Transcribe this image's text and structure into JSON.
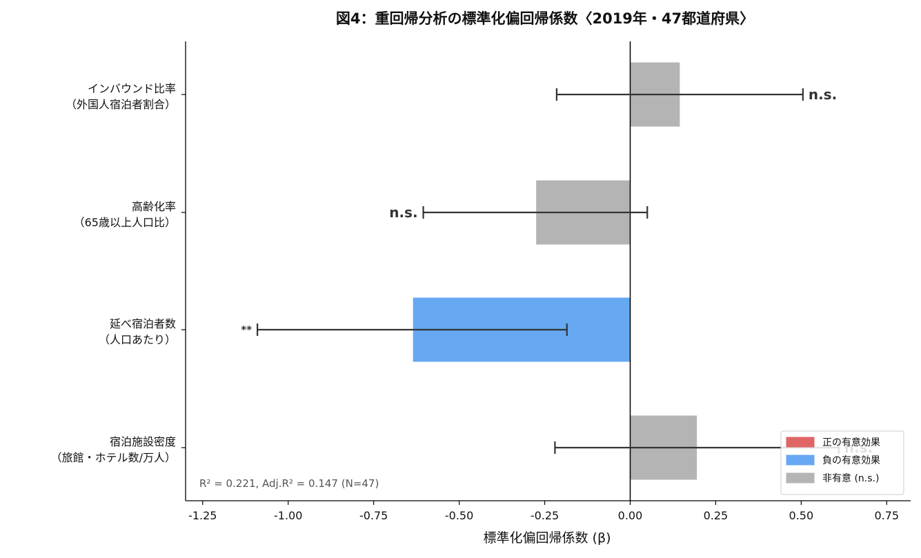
{
  "chart_data": {
    "type": "bar",
    "orientation": "horizontal",
    "title": "図4：重回帰分析の標準化偏回帰係数〈2019年・47都道府県〉",
    "xlabel": "標準化偏回帰係数 (β)",
    "ylabel": "",
    "xlim": [
      -1.3,
      0.82
    ],
    "xticks": [
      -1.25,
      -1.0,
      -0.75,
      -0.5,
      -0.25,
      0.0,
      0.25,
      0.5,
      0.75
    ],
    "xtick_labels": [
      "-1.25",
      "-1.00",
      "-0.75",
      "-0.50",
      "-0.25",
      "0.00",
      "0.25",
      "0.50",
      "0.75"
    ],
    "grid": false,
    "categories": [
      {
        "line1": "インバウンド比率",
        "line2": "（外国人宿泊者割合）"
      },
      {
        "line1": "高齢化率",
        "line2": "（65歳以上人口比）"
      },
      {
        "line1": "延べ宿泊者数",
        "line2": "（人口あたり）"
      },
      {
        "line1": "宿泊施設密度",
        "line2": "（旅館・ホテル数/万人）"
      }
    ],
    "values": [
      0.145,
      -0.275,
      -0.635,
      0.195
    ],
    "ci_low": [
      -0.215,
      -0.605,
      -1.09,
      -0.22
    ],
    "ci_high": [
      0.505,
      0.05,
      -0.185,
      0.61
    ],
    "significance": [
      "n.s.",
      "n.s.",
      "**",
      "n.s."
    ],
    "bar_class": [
      "ns",
      "ns",
      "neg",
      "ns"
    ],
    "colors": {
      "pos": "#e06666",
      "neg": "#66a8f2",
      "ns": "#b4b4b4",
      "errorbar": "#333333",
      "zero_line": "#000000"
    },
    "legend": {
      "position": "lower-right",
      "entries": [
        {
          "label": "正の有意効果",
          "class": "pos"
        },
        {
          "label": "負の有意効果",
          "class": "neg"
        },
        {
          "label": "非有意 (n.s.)",
          "class": "ns"
        }
      ]
    },
    "annotation": "R² = 0.221, Adj.R² = 0.147  (N=47)"
  }
}
